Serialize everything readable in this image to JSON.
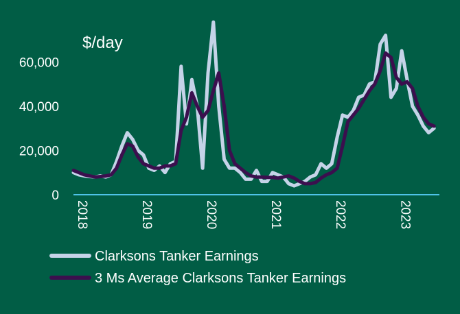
{
  "chart_data": {
    "type": "line",
    "unit_label": "$/day",
    "ylim": [
      0,
      70000
    ],
    "y_ticks": [
      0,
      20000,
      40000,
      60000
    ],
    "y_tick_labels": [
      "0",
      "20,000",
      "40,000",
      "60,000"
    ],
    "xlim": [
      "2018-01",
      "2023-09"
    ],
    "x_tick_labels": [
      "2018",
      "2019",
      "2020",
      "2021",
      "2022",
      "2023"
    ],
    "grid": false,
    "legend_position": "bottom-left",
    "series": [
      {
        "name": "Clarksons Tanker Earnings",
        "color": "#c5d3e8",
        "x": [
          "2018-01",
          "2018-02",
          "2018-03",
          "2018-04",
          "2018-05",
          "2018-06",
          "2018-07",
          "2018-08",
          "2018-09",
          "2018-10",
          "2018-11",
          "2018-12",
          "2019-01",
          "2019-02",
          "2019-03",
          "2019-04",
          "2019-05",
          "2019-06",
          "2019-07",
          "2019-08",
          "2019-09",
          "2019-10",
          "2019-11",
          "2019-12",
          "2020-01",
          "2020-02",
          "2020-03",
          "2020-04",
          "2020-05",
          "2020-06",
          "2020-07",
          "2020-08",
          "2020-09",
          "2020-10",
          "2020-11",
          "2020-12",
          "2021-01",
          "2021-02",
          "2021-03",
          "2021-04",
          "2021-05",
          "2021-06",
          "2021-07",
          "2021-08",
          "2021-09",
          "2021-10",
          "2021-11",
          "2021-12",
          "2022-01",
          "2022-02",
          "2022-03",
          "2022-04",
          "2022-05",
          "2022-06",
          "2022-07",
          "2022-08",
          "2022-09",
          "2022-10",
          "2022-11",
          "2022-12",
          "2023-01",
          "2023-02",
          "2023-03",
          "2023-04",
          "2023-05",
          "2023-06",
          "2023-07",
          "2023-08"
        ],
        "values": [
          10000,
          9000,
          8500,
          8200,
          8000,
          8500,
          8000,
          9000,
          15000,
          22000,
          28000,
          25000,
          20000,
          18000,
          12000,
          11000,
          13000,
          10000,
          14000,
          15000,
          58000,
          32000,
          52000,
          40000,
          12000,
          55000,
          78000,
          40000,
          16000,
          12000,
          12000,
          10000,
          7000,
          7000,
          11000,
          6000,
          6000,
          10000,
          9000,
          8000,
          5000,
          4000,
          5000,
          6000,
          8000,
          9000,
          14000,
          12000,
          14000,
          26000,
          36000,
          35000,
          38000,
          44000,
          45000,
          50000,
          51000,
          68000,
          72000,
          44000,
          48000,
          65000,
          52000,
          40000,
          36000,
          31000,
          28000,
          30000
        ]
      },
      {
        "name": "3 Ms Average Clarksons Tanker Earnings",
        "color": "#3b0f4e",
        "x": [
          "2018-01",
          "2018-02",
          "2018-03",
          "2018-04",
          "2018-05",
          "2018-06",
          "2018-07",
          "2018-08",
          "2018-09",
          "2018-10",
          "2018-11",
          "2018-12",
          "2019-01",
          "2019-02",
          "2019-03",
          "2019-04",
          "2019-05",
          "2019-06",
          "2019-07",
          "2019-08",
          "2019-09",
          "2019-10",
          "2019-11",
          "2019-12",
          "2020-01",
          "2020-02",
          "2020-03",
          "2020-04",
          "2020-05",
          "2020-06",
          "2020-07",
          "2020-08",
          "2020-09",
          "2020-10",
          "2020-11",
          "2020-12",
          "2021-01",
          "2021-02",
          "2021-03",
          "2021-04",
          "2021-05",
          "2021-06",
          "2021-07",
          "2021-08",
          "2021-09",
          "2021-10",
          "2021-11",
          "2021-12",
          "2022-01",
          "2022-02",
          "2022-03",
          "2022-04",
          "2022-05",
          "2022-06",
          "2022-07",
          "2022-08",
          "2022-09",
          "2022-10",
          "2022-11",
          "2022-12",
          "2023-01",
          "2023-02",
          "2023-03",
          "2023-04",
          "2023-05",
          "2023-06",
          "2023-07",
          "2023-08"
        ],
        "values": [
          11000,
          10000,
          9000,
          8500,
          8000,
          8200,
          8500,
          9000,
          12000,
          18000,
          23000,
          22000,
          17000,
          14000,
          13000,
          12000,
          12000,
          13000,
          13000,
          14000,
          29000,
          35000,
          46000,
          40000,
          35000,
          38000,
          47000,
          55000,
          40000,
          20000,
          14000,
          12000,
          10000,
          8500,
          8000,
          8000,
          7800,
          7800,
          7500,
          8000,
          8500,
          7500,
          6000,
          5000,
          5000,
          5500,
          7500,
          9000,
          10000,
          12000,
          22000,
          33000,
          36000,
          39000,
          43000,
          47000,
          50000,
          56000,
          64000,
          62000,
          53000,
          50000,
          51000,
          48000,
          40000,
          35000,
          32000,
          31000
        ]
      }
    ]
  }
}
